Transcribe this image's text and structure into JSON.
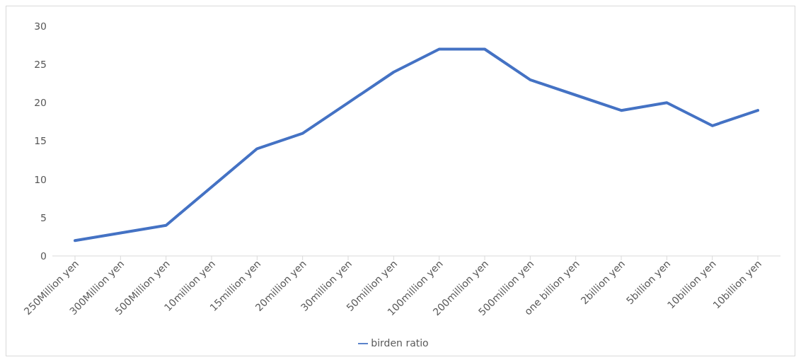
{
  "chart_data": {
    "type": "line",
    "categories": [
      "250Million yen",
      "300Million yen",
      "500Million yen",
      "10million yen",
      "15million yen",
      "20million yen",
      "30million yen",
      "50million yen",
      "100million yen",
      "200million yen",
      "500million yen",
      "one billion yen",
      "2billion yen",
      "5billion yen",
      "10billion yen",
      "10billion yen"
    ],
    "series": [
      {
        "name": "birden ratio",
        "color": "#4472c4",
        "values": [
          2,
          3,
          4,
          9,
          14,
          16,
          20,
          24,
          27,
          27,
          23,
          21,
          19,
          20,
          17,
          19
        ]
      }
    ],
    "ylim": [
      0,
      30
    ],
    "yticks": [
      0,
      5,
      10,
      15,
      20,
      25,
      30
    ],
    "grid": false,
    "legend": "bottom",
    "marker": "none",
    "line_style": "solid"
  }
}
